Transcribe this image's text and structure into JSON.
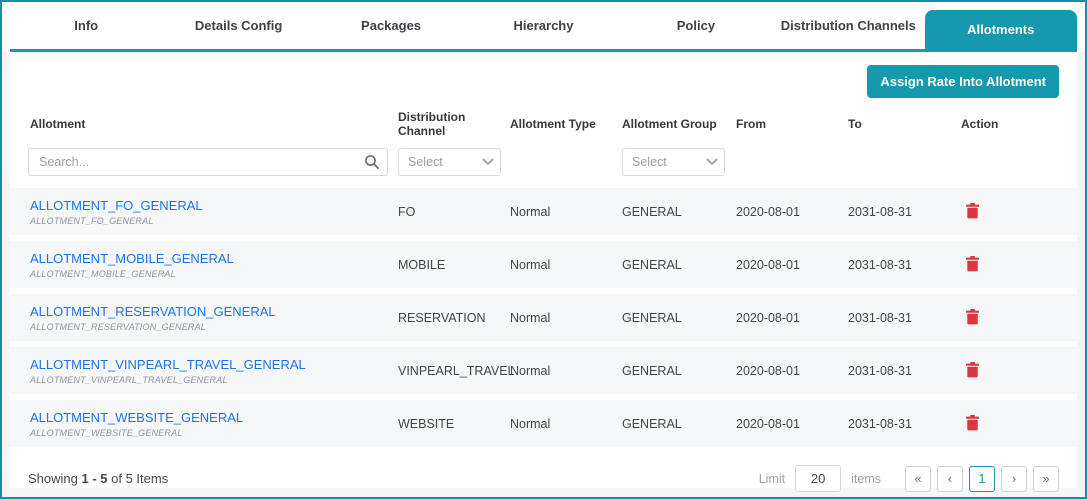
{
  "tabs": {
    "items": [
      "Info",
      "Details Config",
      "Packages",
      "Hierarchy",
      "Policy",
      "Distribution Channels",
      "Allotments"
    ],
    "active": "Allotments"
  },
  "toolbar": {
    "assign_button_label": "Assign Rate Into Allotment"
  },
  "table": {
    "columns": [
      "Allotment",
      "Distribution Channel",
      "Allotment Type",
      "Allotment Group",
      "From",
      "To",
      "Action"
    ],
    "filters": {
      "search_placeholder": "Search...",
      "channel_select_value": "Select",
      "group_select_value": "Select"
    },
    "rows": [
      {
        "name": "ALLOTMENT_FO_GENERAL",
        "code": "ALLOTMENT_FO_GENERAL",
        "channel": "FO",
        "type": "Normal",
        "group": "GENERAL",
        "from": "2020-08-01",
        "to": "2031-08-31"
      },
      {
        "name": "ALLOTMENT_MOBILE_GENERAL",
        "code": "ALLOTMENT_MOBILE_GENERAL",
        "channel": "MOBILE",
        "type": "Normal",
        "group": "GENERAL",
        "from": "2020-08-01",
        "to": "2031-08-31"
      },
      {
        "name": "ALLOTMENT_RESERVATION_GENERAL",
        "code": "ALLOTMENT_RESERVATION_GENERAL",
        "channel": "RESERVATION",
        "type": "Normal",
        "group": "GENERAL",
        "from": "2020-08-01",
        "to": "2031-08-31"
      },
      {
        "name": "ALLOTMENT_VINPEARL_TRAVEL_GENERAL",
        "code": "ALLOTMENT_VINPEARL_TRAVEL_GENERAL",
        "channel": "VINPEARL_TRAVEL",
        "type": "Normal",
        "group": "GENERAL",
        "from": "2020-08-01",
        "to": "2031-08-31"
      },
      {
        "name": "ALLOTMENT_WEBSITE_GENERAL",
        "code": "ALLOTMENT_WEBSITE_GENERAL",
        "channel": "WEBSITE",
        "type": "Normal",
        "group": "GENERAL",
        "from": "2020-08-01",
        "to": "2031-08-31"
      }
    ]
  },
  "footer": {
    "showing_prefix": "Showing",
    "showing_range": "1 - 5",
    "showing_suffix": "of 5 Items",
    "limit_label": "Limit",
    "limit_value": "20",
    "items_label": "items",
    "pagination": [
      {
        "label": "«",
        "name": "first-page-button",
        "current": false
      },
      {
        "label": "‹",
        "name": "prev-page-button",
        "current": false
      },
      {
        "label": "1",
        "name": "page-1-button",
        "current": true
      },
      {
        "label": "›",
        "name": "next-page-button",
        "current": false
      },
      {
        "label": "»",
        "name": "last-page-button",
        "current": false
      }
    ]
  },
  "icons": {
    "search": "search-icon",
    "chevron": "chevron-down-icon",
    "trash": "trash-icon"
  },
  "colors": {
    "accent_teal": "#1599ad",
    "frame_border": "#0f91a6",
    "link_blue": "#1b73e8",
    "danger_red": "#d8373f",
    "row_bg": "#f6f7f9"
  }
}
